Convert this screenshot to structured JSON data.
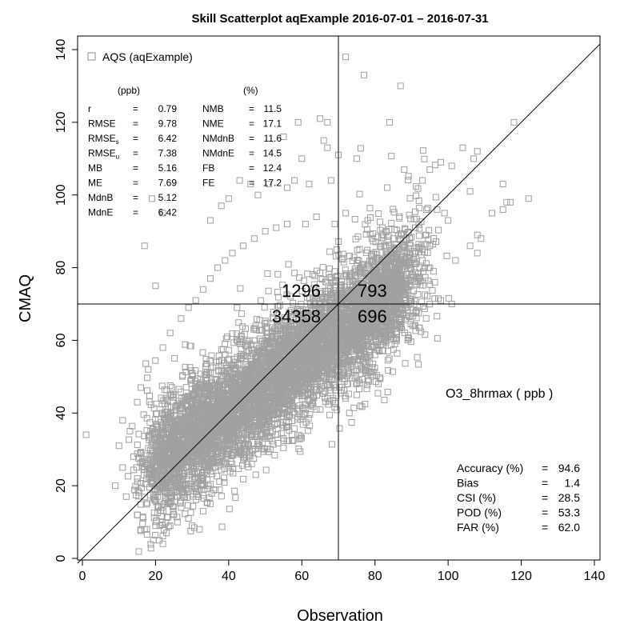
{
  "chart_data": {
    "type": "scatter",
    "title": "Skill Scatterplot aqExample 2016-07-01 – 2016-07-31",
    "xlabel": "Observation",
    "ylabel": "CMAQ",
    "xlim": [
      0,
      140
    ],
    "ylim": [
      0,
      140
    ],
    "x_ticks": [
      "0",
      "20",
      "40",
      "60",
      "80",
      "100",
      "120",
      "140"
    ],
    "y_ticks": [
      "0",
      "20",
      "40",
      "60",
      "80",
      "100",
      "120",
      "140"
    ],
    "threshold": 70,
    "one_to_one_line": true,
    "legend": {
      "position": "top-left",
      "label": "AQS (aqExample)",
      "marker": "open-square"
    },
    "variable_label": "O3_8hrmax  ( ppb )",
    "quadrant_counts": {
      "upper_left": "1296",
      "upper_right": "793",
      "lower_left": "34358",
      "lower_right": "696"
    },
    "stats_units": {
      "left": "(ppb)",
      "right": "(%)"
    },
    "stats_left": [
      {
        "name": "r",
        "sub": "",
        "eq": "=",
        "value": "0.79"
      },
      {
        "name": "RMSE",
        "sub": "",
        "eq": "=",
        "value": "9.78"
      },
      {
        "name": "RMSE",
        "sub": "s",
        "eq": "=",
        "value": "6.42"
      },
      {
        "name": "RMSE",
        "sub": "u",
        "eq": "=",
        "value": "7.38"
      },
      {
        "name": "MB",
        "sub": "",
        "eq": "=",
        "value": "5.16"
      },
      {
        "name": "ME",
        "sub": "",
        "eq": "=",
        "value": "7.69"
      },
      {
        "name": "MdnB",
        "sub": "",
        "eq": "=",
        "value": "5.12"
      },
      {
        "name": "MdnE",
        "sub": "",
        "eq": "=",
        "value": "6.42"
      }
    ],
    "stats_right": [
      {
        "name": "NMB",
        "eq": "=",
        "value": "11.5"
      },
      {
        "name": "NME",
        "eq": "=",
        "value": "17.1"
      },
      {
        "name": "NMdnB",
        "eq": "=",
        "value": "11.6"
      },
      {
        "name": "NMdnE",
        "eq": "=",
        "value": "14.5"
      },
      {
        "name": "FB",
        "eq": "=",
        "value": "12.4"
      },
      {
        "name": "FE",
        "eq": "=",
        "value": "17.2"
      }
    ],
    "categorical_stats": [
      {
        "name": "Accuracy (%)",
        "eq": "=",
        "value": "94.6"
      },
      {
        "name": "Bias",
        "eq": "=",
        "value": "1.4"
      },
      {
        "name": "CSI (%)",
        "eq": "=",
        "value": "28.5"
      },
      {
        "name": "POD (%)",
        "eq": "=",
        "value": "53.3"
      },
      {
        "name": "FAR (%)",
        "eq": "=",
        "value": "62.0"
      }
    ],
    "marker_color": "#a0a0a0",
    "series": [
      {
        "name": "AQS (aqExample)",
        "points": [
          [
            1,
            34
          ],
          [
            17,
            86
          ],
          [
            20,
            75
          ],
          [
            22,
            95
          ],
          [
            19,
            99
          ],
          [
            15,
            22
          ],
          [
            72,
            138
          ],
          [
            77,
            133
          ],
          [
            87,
            130
          ],
          [
            84,
            120
          ],
          [
            65,
            121
          ],
          [
            67,
            120
          ],
          [
            59,
            120
          ],
          [
            55,
            116
          ],
          [
            66,
            115
          ],
          [
            67,
            113
          ],
          [
            70,
            111
          ],
          [
            75,
            110
          ],
          [
            60,
            110
          ],
          [
            68,
            104
          ],
          [
            62,
            103
          ],
          [
            58,
            104
          ],
          [
            51,
            103
          ],
          [
            56,
            102
          ],
          [
            46,
            103
          ],
          [
            43,
            104
          ],
          [
            48,
            100
          ],
          [
            40,
            99
          ],
          [
            38,
            97
          ],
          [
            35,
            93
          ],
          [
            88,
            107
          ],
          [
            93,
            104
          ],
          [
            95,
            107
          ],
          [
            98,
            109
          ],
          [
            104,
            113
          ],
          [
            101,
            108
          ],
          [
            107,
            110
          ],
          [
            108,
            112
          ],
          [
            106,
            101
          ],
          [
            115,
            103
          ],
          [
            118,
            120
          ],
          [
            122,
            99
          ],
          [
            117,
            98
          ],
          [
            116,
            98
          ],
          [
            115,
            96
          ],
          [
            112,
            95
          ],
          [
            109,
            88
          ],
          [
            108,
            89
          ],
          [
            106,
            86
          ],
          [
            108,
            84
          ],
          [
            100,
            93
          ],
          [
            97,
            96
          ],
          [
            99,
            95
          ],
          [
            91,
            91
          ],
          [
            94,
            89
          ],
          [
            95,
            86
          ],
          [
            102,
            82
          ],
          [
            96,
            79
          ],
          [
            90,
            78
          ],
          [
            89,
            74
          ],
          [
            86,
            72
          ],
          [
            98,
            71
          ],
          [
            101,
            70
          ],
          [
            85,
            67
          ],
          [
            81,
            65
          ],
          [
            78,
            63
          ],
          [
            83,
            60
          ],
          [
            76,
            58
          ],
          [
            74,
            54
          ],
          [
            80,
            56
          ],
          [
            78,
            49
          ],
          [
            75,
            45
          ],
          [
            72,
            44
          ],
          [
            76,
            42
          ],
          [
            73,
            40
          ],
          [
            69,
            47
          ],
          [
            67,
            44
          ],
          [
            64,
            41
          ],
          [
            60,
            39
          ],
          [
            55,
            36
          ],
          [
            52,
            35
          ],
          [
            50,
            33
          ],
          [
            48,
            31
          ],
          [
            44,
            27
          ],
          [
            40,
            25
          ],
          [
            35,
            24
          ],
          [
            33,
            22
          ],
          [
            31,
            20
          ],
          [
            28,
            17
          ],
          [
            27,
            14
          ],
          [
            25,
            12
          ],
          [
            29,
            11
          ],
          [
            33,
            13
          ],
          [
            35,
            15
          ],
          [
            24,
            9
          ],
          [
            23,
            7
          ],
          [
            21,
            5
          ],
          [
            22,
            4
          ],
          [
            26,
            10
          ],
          [
            30,
            9
          ],
          [
            32,
            8
          ],
          [
            17,
            8
          ],
          [
            20,
            9
          ],
          [
            15,
            12
          ],
          [
            12,
            17
          ],
          [
            9,
            20
          ],
          [
            11,
            25
          ],
          [
            14,
            28
          ],
          [
            10,
            31
          ],
          [
            13,
            35
          ],
          [
            11,
            38
          ],
          [
            15,
            43
          ],
          [
            16,
            47
          ],
          [
            18,
            52
          ],
          [
            22,
            58
          ],
          [
            24,
            62
          ],
          [
            27,
            66
          ],
          [
            29,
            69
          ],
          [
            31,
            71
          ],
          [
            33,
            74
          ],
          [
            35,
            77
          ],
          [
            37,
            80
          ],
          [
            39,
            82
          ],
          [
            41,
            84
          ],
          [
            44,
            86
          ],
          [
            47,
            88
          ],
          [
            50,
            90
          ],
          [
            53,
            91
          ],
          [
            56,
            92
          ],
          [
            61,
            92
          ],
          [
            64,
            94
          ],
          [
            69,
            92
          ],
          [
            72,
            95
          ],
          [
            78,
            93
          ],
          [
            82,
            91
          ],
          [
            85,
            88
          ],
          [
            88,
            86
          ],
          [
            91,
            84
          ],
          [
            93,
            82
          ],
          [
            95,
            80
          ],
          [
            92,
            77
          ],
          [
            89,
            73
          ]
        ]
      }
    ]
  }
}
